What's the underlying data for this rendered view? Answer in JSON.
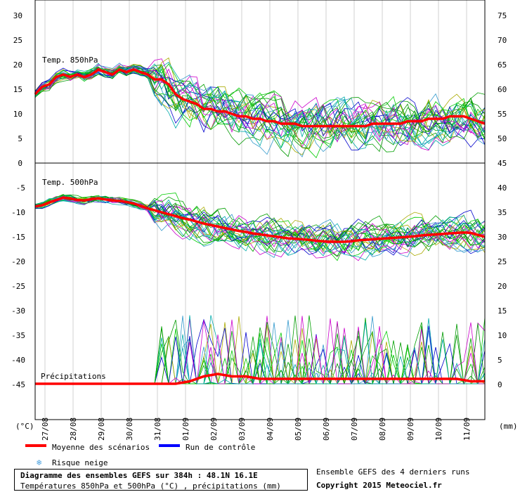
{
  "chart_data": [
    {
      "type": "line",
      "panel_label": "Temp. 850hPa",
      "left_ticks": [
        "30",
        "25",
        "20",
        "15",
        "10",
        "5",
        "0"
      ],
      "right_ticks": [
        "75",
        "70",
        "65",
        "60",
        "55",
        "50",
        "45"
      ],
      "ylim": [
        0,
        30
      ],
      "series": [
        {
          "name": "Moyenne des scénarios",
          "color": "#ff0000",
          "x": [
            0,
            6,
            12,
            18,
            24,
            30,
            36,
            42,
            48,
            54,
            60,
            66,
            72,
            78,
            84,
            90,
            96,
            102,
            108,
            114,
            120,
            126,
            132,
            138,
            144,
            150,
            156,
            162,
            168,
            174,
            180,
            186,
            192,
            198,
            204,
            210,
            216,
            222,
            228,
            234,
            240,
            246,
            252,
            258,
            264,
            270,
            276,
            282,
            288,
            294,
            300,
            306,
            312,
            318,
            324,
            330,
            336,
            342,
            348,
            354,
            360,
            366,
            372,
            378,
            384
          ],
          "y": [
            14,
            15.5,
            16,
            17.5,
            18,
            17.5,
            18,
            17.5,
            18,
            19,
            18.5,
            18,
            19,
            18.5,
            19,
            18.5,
            18,
            17,
            17,
            16,
            14,
            13,
            12.5,
            12,
            11,
            11,
            10.5,
            10.5,
            10,
            9.5,
            9.5,
            9,
            9,
            8.5,
            8.5,
            8,
            8,
            8,
            7.5,
            7.5,
            7.5,
            7.5,
            7.5,
            7.5,
            7.5,
            7.5,
            7.5,
            7.5,
            8,
            8,
            8,
            8,
            8,
            8.5,
            8.5,
            8.5,
            9,
            9,
            9,
            9.5,
            9.5,
            9.5,
            9,
            8.5,
            8
          ]
        }
      ]
    },
    {
      "type": "line",
      "panel_label": "Temp. 500hPa",
      "left_ticks": [
        "-5",
        "-10",
        "-15",
        "-20",
        "-25",
        "-30",
        "-35",
        "-40",
        "-45"
      ],
      "right_ticks": [
        "40",
        "35",
        "30",
        "25",
        "20",
        "15",
        "10",
        "5",
        "0"
      ],
      "ylim": [
        -22,
        -5
      ],
      "series": [
        {
          "name": "Moyenne des scénarios",
          "color": "#ff0000",
          "x": [
            0,
            6,
            12,
            18,
            24,
            30,
            36,
            42,
            48,
            54,
            60,
            66,
            72,
            78,
            84,
            90,
            96,
            102,
            108,
            114,
            120,
            126,
            132,
            138,
            144,
            150,
            156,
            162,
            168,
            174,
            180,
            186,
            192,
            198,
            204,
            210,
            216,
            222,
            228,
            234,
            240,
            246,
            252,
            258,
            264,
            270,
            276,
            282,
            288,
            294,
            300,
            306,
            312,
            318,
            324,
            330,
            336,
            342,
            348,
            354,
            360,
            366,
            372,
            378,
            384
          ],
          "y": [
            -8.8,
            -8.6,
            -8,
            -7.5,
            -7,
            -7.2,
            -7.5,
            -7.6,
            -7.3,
            -7.2,
            -7.4,
            -7.6,
            -7.7,
            -7.9,
            -8.2,
            -8.7,
            -9.2,
            -9.6,
            -10,
            -10.4,
            -10.8,
            -11.2,
            -11.5,
            -11.9,
            -12.3,
            -12.6,
            -12.9,
            -13.2,
            -13.5,
            -13.8,
            -14,
            -14.3,
            -14.5,
            -14.7,
            -14.9,
            -15.1,
            -15.3,
            -15.4,
            -15.5,
            -15.6,
            -15.8,
            -15.9,
            -16,
            -16,
            -16,
            -15.9,
            -15.7,
            -15.6,
            -15.5,
            -15.4,
            -15.3,
            -15.2,
            -15.1,
            -15,
            -14.9,
            -14.7,
            -14.6,
            -14.5,
            -14.4,
            -14.3,
            -14.2,
            -14.1,
            -14.2,
            -14.6,
            -15
          ]
        }
      ]
    },
    {
      "type": "line",
      "panel_label": "Précipitations",
      "ylim": [
        0,
        40
      ],
      "series": [
        {
          "name": "Moyenne des scénarios",
          "color": "#ff0000",
          "x": [
            0,
            24,
            48,
            72,
            96,
            120,
            132,
            144,
            156,
            168,
            180,
            192,
            204,
            216,
            228,
            240,
            252,
            264,
            276,
            288,
            300,
            312,
            324,
            336,
            348,
            360,
            372,
            384
          ],
          "y": [
            0,
            0,
            0,
            0,
            0,
            0,
            0.5,
            1.5,
            2,
            1.5,
            1.5,
            1,
            1,
            1,
            1,
            1,
            1,
            1,
            1,
            1,
            1,
            1,
            1,
            1,
            1,
            1,
            0.5,
            0.5
          ]
        }
      ]
    }
  ],
  "units": {
    "left": "(°C)",
    "right": "(mm)"
  },
  "x_ticks": [
    "27/08",
    "28/08",
    "29/08",
    "30/08",
    "31/08",
    "01/09",
    "02/09",
    "03/09",
    "04/09",
    "05/09",
    "06/09",
    "07/09",
    "08/09",
    "09/09",
    "10/09",
    "11/09"
  ],
  "legend": {
    "mean_label": "Moyenne des scénarios",
    "mean_color": "#ff0000",
    "control_label": "Run de contrôle",
    "control_color": "#0000ff",
    "snow_label": "Risque neige",
    "snow_icon": "snowflake-icon"
  },
  "footer": {
    "title": "Diagramme des ensembles GEFS sur 384h : 48.1N 16.1E",
    "subtitle": "Températures 850hPa et 500hPa (°C) , précipitations (mm)",
    "ensemble_note": "Ensemble GEFS des 4 derniers runs",
    "copyright": "Copyright 2015 Meteociel.fr"
  },
  "member_colors": [
    "#00a000",
    "#00cc00",
    "#cc00cc",
    "#00aaaa",
    "#aaaa00",
    "#3399cc",
    "#009900",
    "#0000cc"
  ]
}
